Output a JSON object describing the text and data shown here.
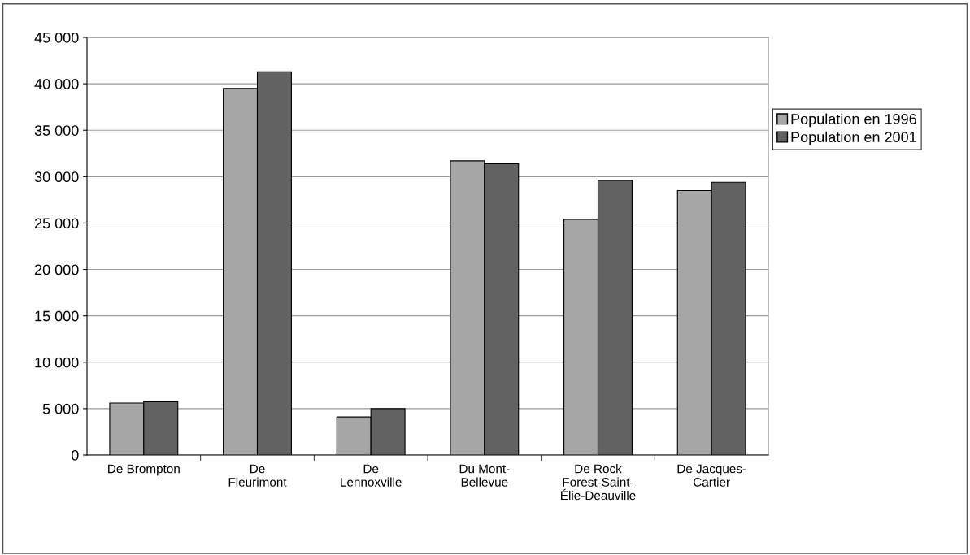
{
  "chart_data": {
    "type": "bar",
    "categories": [
      "De Brompton",
      "De\nFleurimont",
      "De\nLennoxville",
      "Du Mont-\nBellevue",
      "De Rock\nForest-Saint-\nÉlie-Deauville",
      "De Jacques-\nCartier"
    ],
    "series": [
      {
        "name": "Population en 1996",
        "color": "#a6a6a6",
        "values": [
          5600,
          39500,
          4100,
          31700,
          25400,
          28500
        ]
      },
      {
        "name": "Population en 2001",
        "color": "#626262",
        "values": [
          5750,
          41300,
          5000,
          31400,
          29600,
          29400
        ]
      }
    ],
    "ylim": [
      0,
      45000
    ],
    "yticks": [
      {
        "value": 0,
        "label": "0"
      },
      {
        "value": 5000,
        "label": "5 000"
      },
      {
        "value": 10000,
        "label": "10 000"
      },
      {
        "value": 15000,
        "label": "15 000"
      },
      {
        "value": 20000,
        "label": "20 000"
      },
      {
        "value": 25000,
        "label": "25 000"
      },
      {
        "value": 30000,
        "label": "30 000"
      },
      {
        "value": 35000,
        "label": "35 000"
      },
      {
        "value": 40000,
        "label": "40 000"
      },
      {
        "value": 45000,
        "label": "45 000"
      }
    ],
    "grid": "y",
    "legend": "right"
  }
}
